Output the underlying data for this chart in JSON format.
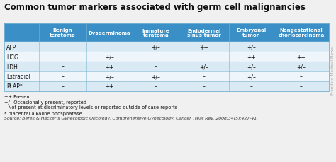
{
  "title": "Common tumor markers associated with germ cell malignancies",
  "col_headers": [
    "Benign\nteratoma",
    "Dysgerminoma",
    "Immature\nteratoma",
    "Endodermal\nsinus tumor",
    "Embryonal\ntumor",
    "Nongestational\nchoriocarcinoma"
  ],
  "row_headers": [
    "AFP",
    "HCG",
    "LDH",
    "Estradiol",
    "PLAP*"
  ],
  "table_data": [
    [
      "–",
      "–",
      "+/–",
      "++",
      "+/–",
      "–"
    ],
    [
      "–",
      "+/–",
      "–",
      "–",
      "++",
      "++"
    ],
    [
      "–",
      "++",
      "–",
      "+/–",
      "+/–",
      "+/–"
    ],
    [
      "–",
      "+/–",
      "+/–",
      "–",
      "+/–",
      "–"
    ],
    [
      "–",
      "++",
      "–",
      "–",
      "–",
      "–"
    ]
  ],
  "header_bg": "#3a8fc7",
  "header_text_color": "#FFFFFF",
  "row_bg_light": "#daeaf5",
  "row_bg_white": "#eef5fb",
  "row_text_color": "#111111",
  "border_color": "#7ab3d0",
  "footnote_lines": [
    "++ Present",
    "+/– Occasionally present, reported",
    "– Not present at discriminatory levels or reported outside of case reports"
  ],
  "footnote2": "* placental alkaline phosphatase",
  "source_line": "Source: Berek & Hacker’s Gynecologic Oncology, Comprehensive Gynecology, Cancer Treat Rev. 2008;34(5):427-41",
  "watermark": "Frontline Medical News",
  "bg_color": "#f0f0f0"
}
